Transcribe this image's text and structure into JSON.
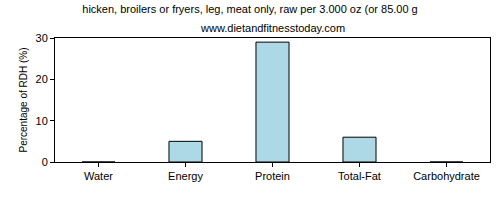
{
  "chart_data": {
    "type": "bar",
    "title": "hicken, broilers or fryers, leg, meat only, raw per 3.000 oz (or 85.00 g",
    "subtitle": "www.dietandfitnesstoday.com",
    "y_label": "Percentage of RDH (%)",
    "categories": [
      "Water",
      "Energy",
      "Protein",
      "Total-Fat",
      "Carbohydrate"
    ],
    "values": [
      0,
      5,
      29,
      6,
      0
    ],
    "color": "#add8e6",
    "ylim": [
      0,
      30
    ],
    "yticks": [
      0,
      10,
      20,
      30
    ],
    "grid": false
  }
}
